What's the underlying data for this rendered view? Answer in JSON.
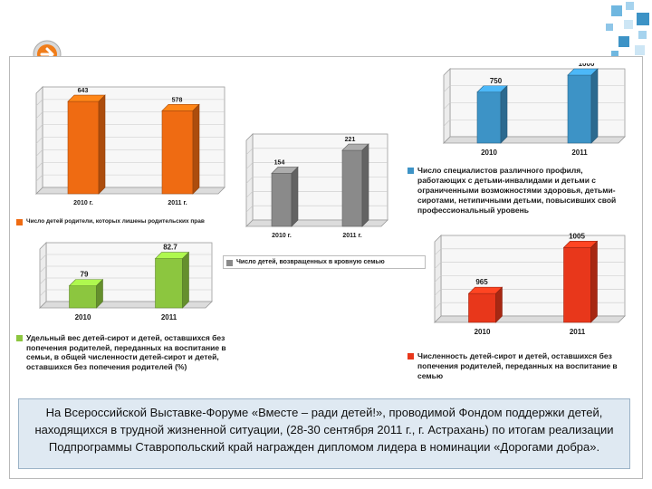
{
  "colors": {
    "orange": "#ef6b12",
    "blue": "#3d93c6",
    "gray": "#8a8a8a",
    "green": "#8cc63f",
    "red": "#e8371b",
    "caption_bg": "#dfe9f2"
  },
  "nav_icon": "arrow-right-icon",
  "chart_data": [
    {
      "type": "bar",
      "id": "deprived",
      "categories": [
        "2010 г.",
        "2011 г."
      ],
      "values": [
        643,
        578
      ],
      "ylim": [
        0,
        700
      ],
      "legend": "Число детей родители, которых лишены родительских прав",
      "color": "#ef6b12"
    },
    {
      "type": "bar",
      "id": "specialists",
      "categories": [
        "2010",
        "2011"
      ],
      "values": [
        750,
        1000
      ],
      "ylim": [
        0,
        1000
      ],
      "legend": "Число специалистов различного профиля, работающих с детьми-инвалидами и детьми с ограниченными возможностями здоровья, детьми-сиротами, нетипичными детьми, повысивших свой профессиональный уровень",
      "color": "#3d93c6"
    },
    {
      "type": "bar",
      "id": "returned",
      "categories": [
        "2010 г.",
        "2011 г."
      ],
      "values": [
        154,
        221
      ],
      "ylim": [
        0,
        250
      ],
      "legend": "Число детей, возвращенных в кровную семью",
      "color": "#8a8a8a"
    },
    {
      "type": "bar",
      "id": "share",
      "categories": [
        "2010",
        "2011"
      ],
      "values": [
        79,
        82.7
      ],
      "ylim": [
        76,
        84
      ],
      "legend": "Удельный вес детей-сирот и детей, оставшихся без попечения родителей, переданных на воспитание в семьи, в общей численности детей-сирот и детей, оставшихся без попечения родителей (%)",
      "color": "#8cc63f"
    },
    {
      "type": "bar",
      "id": "placed",
      "categories": [
        "2010",
        "2011"
      ],
      "values": [
        965,
        1005
      ],
      "ylim": [
        940,
        1010
      ],
      "legend": "Численность детей-сирот и детей, оставшихся без попечения родителей, переданных на воспитание в семью",
      "color": "#e8371b"
    }
  ],
  "caption": "На Всероссийской Выставке-Форуме «Вместе – ради детей!», проводимой Фондом поддержки детей, находящихся в трудной жизненной ситуации, (28-30 сентября 2011 г., г. Астрахань) по итогам реализации Подпрограммы Ставропольский край награжден дипломом лидера в номинации «Дорогами добра»."
}
